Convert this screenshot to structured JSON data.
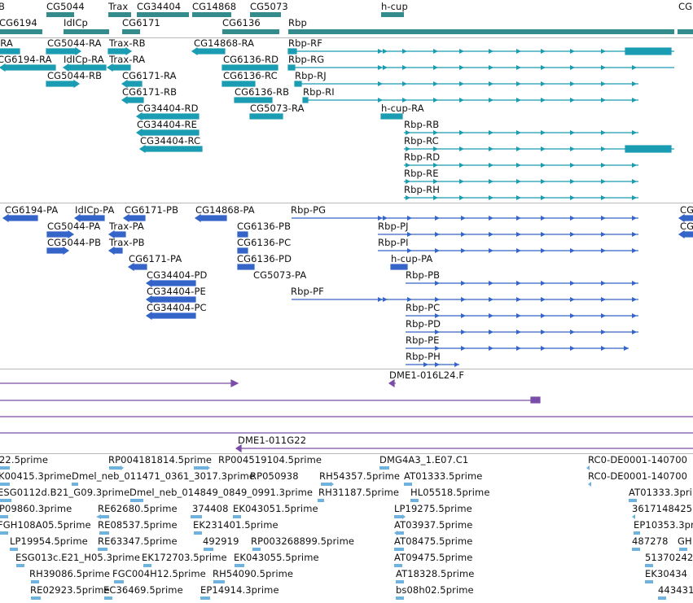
{
  "colors": {
    "gene": "#338b8b",
    "annotation_transcript": "#1a9cb3",
    "prediction": "#3565c8",
    "clone_line": "#7a4ea8",
    "est": "#6fb2dd",
    "separator": "#b9b9b9"
  },
  "gene_track": {
    "labels": [
      "CG5044",
      "Trax",
      "CG34404",
      "CG14868",
      "CG5073",
      "h-cup",
      "CG6194",
      "IdICp",
      "CG6171",
      "CG6136",
      "Rbp",
      "B",
      "CG"
    ]
  },
  "transcript_track": {
    "labels": [
      "CG5044-RA",
      "Trax-RB",
      "CG14868-RA",
      "Rbp-RF",
      "CG6194-RA",
      "IdICp-RA",
      "Trax-RA",
      "CG6136-RD",
      "Rbp-RG",
      "CG5044-RB",
      "CG6171-RA",
      "CG6136-RC",
      "Rbp-RJ",
      "CG6171-RB",
      "CG6136-RB",
      "Rbp-RI",
      "CG34404-RD",
      "CG5073-RA",
      "h-cup-RA",
      "CG34404-RE",
      "Rbp-RB",
      "CG34404-RC",
      "Rbp-RC",
      "Rbp-RD",
      "Rbp-RE",
      "Rbp-RH",
      "B-RA"
    ]
  },
  "prediction_track": {
    "labels": [
      "CG6194-PA",
      "IdICp-PA",
      "CG6171-PB",
      "CG14868-PA",
      "Rbp-PG",
      "CG5044-PA",
      "Trax-PA",
      "CG6136-PB",
      "Rbp-PJ",
      "CG5044-PB",
      "Trax-PB",
      "CG6136-PC",
      "Rbp-PI",
      "CG6171-PA",
      "CG6136-PD",
      "h-cup-PA",
      "CG34404-PD",
      "CG5073-PA",
      "Rbp-PB",
      "CG34404-PE",
      "Rbp-PF",
      "CG34404-PC",
      "Rbp-PC",
      "Rbp-PD",
      "Rbp-PE",
      "Rbp-PH",
      "CG",
      "CG"
    ]
  },
  "clone_track": {
    "labels": [
      "DME1-016L24.F",
      "DME1-011G22"
    ]
  },
  "est_track": {
    "labels": [
      "22.5prime",
      "RP004181814.5prime",
      "RP004519104.5prime",
      "DMG4A3_1.E07.C1",
      "RC0-DE0001-140700",
      "K00415.3prime",
      "Dmel_neb_011471_0361_3017.3prime",
      "RP050938",
      "RH54357.5prime",
      "AT01333.5prime",
      "RC0-DE0001-140700",
      "ESG0112d.B21_G09.3prime",
      "Dmel_neb_014849_0849_0991.3prime",
      "RH31187.5prime",
      "HL05518.5prime",
      "AT01333.3prime",
      "P09860.3prime",
      "RE62680.5prime",
      "374408",
      "EK043051.5prime",
      "LP19275.5prime",
      "3617148425",
      "FGH108A05.5prime",
      "RE08537.5prime",
      "EK231401.5prime",
      "AT03937.5prime",
      "EP10353.3prime",
      "LP19954.5prime",
      "RE63347.5prime",
      "492919",
      "RP003268899.5prime",
      "AT08475.5prime",
      "487278",
      "GH",
      "ESG013c.E21_H05.3prime",
      "EK172703.5prime",
      "EK043055.5prime",
      "AT09475.5prime",
      "51370242",
      "RH39086.5prime",
      "FGC004H12.5prime",
      "RH54090.5prime",
      "AT18328.5prime",
      "EK30434",
      "RE02923.5prime",
      "EC36469.5prime",
      "EP14914.3prime",
      "bs08h02.5prime",
      "443431"
    ]
  }
}
